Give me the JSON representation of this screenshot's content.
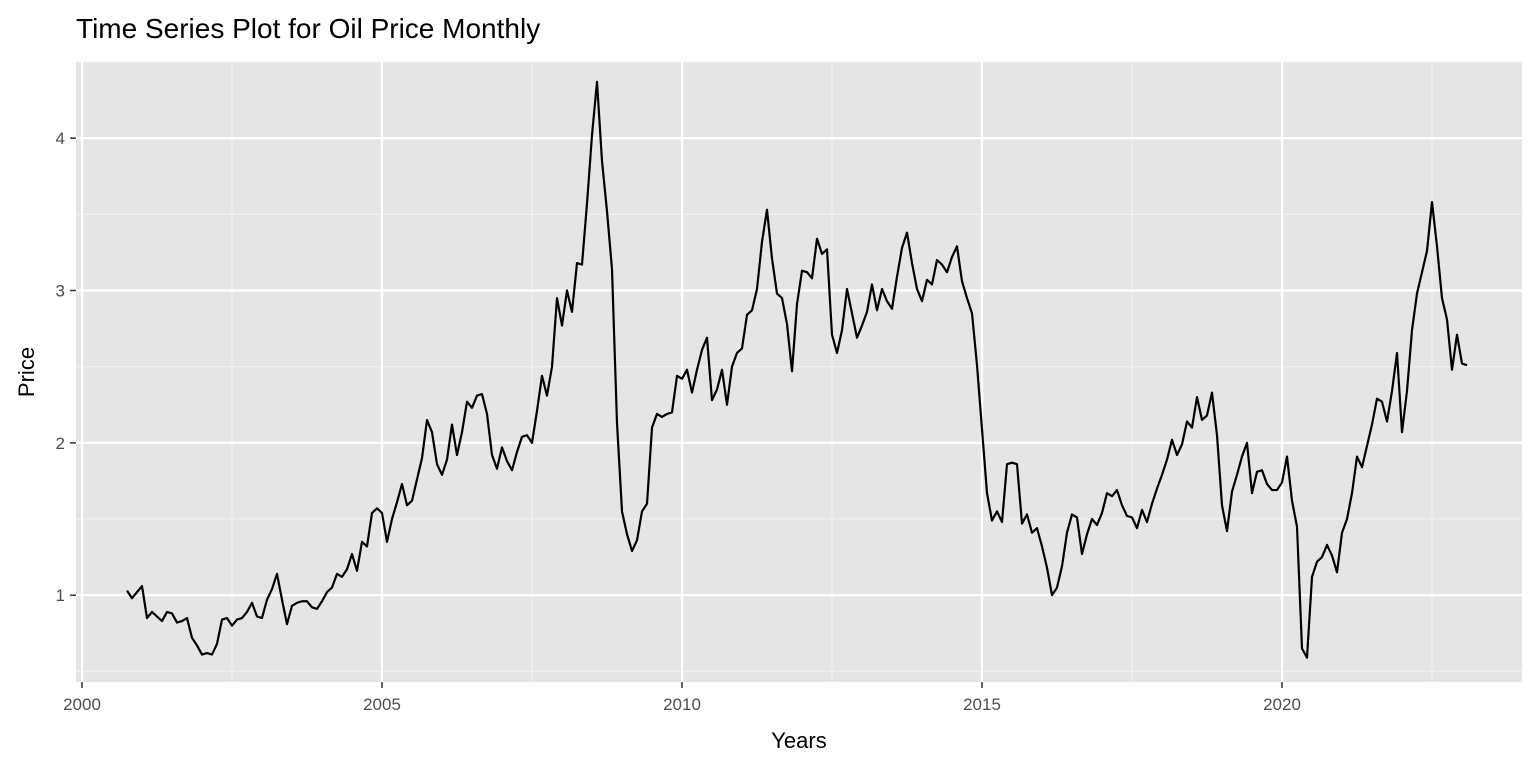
{
  "chart_data": {
    "type": "line",
    "title": "Time Series Plot for Oil Price Monthly",
    "xlabel": "Years",
    "ylabel": "Price",
    "xlim": [
      1999.9,
      2024.0
    ],
    "ylim": [
      0.43,
      4.5
    ],
    "x_ticks": [
      2000,
      2005,
      2010,
      2015,
      2020
    ],
    "x_tick_labels": [
      "2000",
      "2005",
      "2010",
      "2015",
      "2020"
    ],
    "y_ticks": [
      1,
      2,
      3,
      4
    ],
    "y_tick_labels": [
      "1",
      "2",
      "3",
      "4"
    ],
    "grid": true,
    "legend": "none",
    "line_color": "#000000",
    "panel_color": "#e5e5e5",
    "series": [
      {
        "x_start": 2000.75,
        "x_step": 0.0833333,
        "values": [
          1.03,
          0.98,
          1.02,
          1.06,
          0.85,
          0.89,
          0.86,
          0.83,
          0.89,
          0.88,
          0.82,
          0.83,
          0.85,
          0.72,
          0.67,
          0.61,
          0.62,
          0.61,
          0.68,
          0.84,
          0.85,
          0.8,
          0.84,
          0.85,
          0.89,
          0.95,
          0.86,
          0.85,
          0.97,
          1.04,
          1.14,
          0.97,
          0.81,
          0.93,
          0.95,
          0.96,
          0.96,
          0.92,
          0.91,
          0.96,
          1.02,
          1.05,
          1.14,
          1.12,
          1.17,
          1.27,
          1.16,
          1.35,
          1.32,
          1.54,
          1.57,
          1.54,
          1.35,
          1.5,
          1.61,
          1.73,
          1.59,
          1.62,
          1.76,
          1.9,
          2.15,
          2.07,
          1.86,
          1.79,
          1.89,
          2.12,
          1.92,
          2.07,
          2.27,
          2.23,
          2.31,
          2.32,
          2.19,
          1.92,
          1.83,
          1.97,
          1.88,
          1.82,
          1.94,
          2.04,
          2.05,
          2.0,
          2.21,
          2.44,
          2.31,
          2.5,
          2.95,
          2.77,
          3.0,
          2.86,
          3.18,
          3.17,
          3.57,
          4.02,
          4.37,
          3.85,
          3.52,
          3.14,
          2.13,
          1.55,
          1.4,
          1.29,
          1.36,
          1.55,
          1.6,
          2.1,
          2.19,
          2.17,
          2.19,
          2.2,
          2.44,
          2.42,
          2.48,
          2.33,
          2.48,
          2.61,
          2.69,
          2.28,
          2.35,
          2.48,
          2.25,
          2.5,
          2.59,
          2.62,
          2.84,
          2.87,
          3.01,
          3.32,
          3.53,
          3.21,
          2.98,
          2.95,
          2.78,
          2.47,
          2.91,
          3.13,
          3.12,
          3.08,
          3.34,
          3.24,
          3.27,
          2.71,
          2.59,
          2.74,
          3.01,
          2.85,
          2.69,
          2.77,
          2.86,
          3.04,
          2.87,
          3.01,
          2.93,
          2.88,
          3.09,
          3.28,
          3.38,
          3.18,
          3.01,
          2.93,
          3.07,
          3.04,
          3.2,
          3.17,
          3.12,
          3.22,
          3.29,
          3.06,
          2.95,
          2.85,
          2.51,
          2.09,
          1.67,
          1.49,
          1.55,
          1.48,
          1.86,
          1.87,
          1.86,
          1.47,
          1.53,
          1.41,
          1.44,
          1.32,
          1.18,
          1.0,
          1.05,
          1.19,
          1.41,
          1.53,
          1.51,
          1.27,
          1.4,
          1.5,
          1.46,
          1.54,
          1.67,
          1.65,
          1.69,
          1.59,
          1.52,
          1.51,
          1.44,
          1.56,
          1.48,
          1.6,
          1.7,
          1.79,
          1.89,
          2.02,
          1.92,
          1.99,
          2.14,
          2.1,
          2.3,
          2.15,
          2.18,
          2.33,
          2.05,
          1.59,
          1.42,
          1.68,
          1.79,
          1.91,
          2.0,
          1.67,
          1.81,
          1.82,
          1.73,
          1.69,
          1.69,
          1.74,
          1.91,
          1.62,
          1.45,
          0.65,
          0.59,
          1.12,
          1.22,
          1.25,
          1.33,
          1.26,
          1.15,
          1.41,
          1.5,
          1.67,
          1.91,
          1.84,
          1.98,
          2.12,
          2.29,
          2.27,
          2.14,
          2.34,
          2.59,
          2.07,
          2.34,
          2.74,
          2.98,
          3.12,
          3.26,
          3.58,
          3.29,
          2.95,
          2.81,
          2.48,
          2.71,
          2.52,
          2.51
        ]
      }
    ]
  }
}
